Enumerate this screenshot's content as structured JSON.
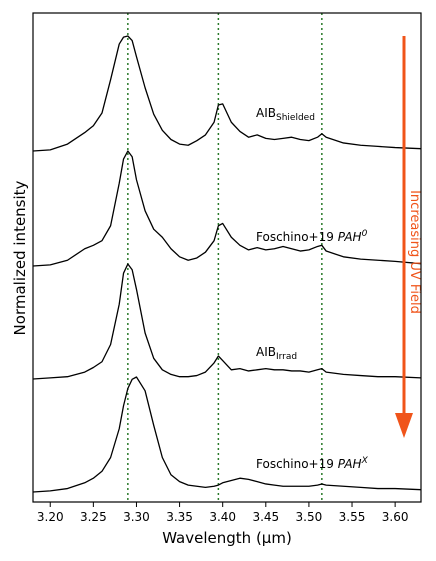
{
  "chart_data": {
    "type": "line",
    "xlabel": "Wavelength (μm)",
    "ylabel": "Normalized intensity",
    "xlim": [
      3.18,
      3.63
    ],
    "x_ticks": [
      "3.20",
      "3.25",
      "3.30",
      "3.35",
      "3.40",
      "3.45",
      "3.50",
      "3.55",
      "3.60"
    ],
    "vertical_lines": [
      3.29,
      3.395,
      3.515
    ],
    "vertical_line_color": "#2a7a2a",
    "line_color": "#000000",
    "arrow": {
      "label": "Increasing UV Field",
      "color": "#f0541a",
      "direction": "down"
    },
    "series": [
      {
        "name": "AIB",
        "name_sub": "Shielded",
        "name_sup": "",
        "name_italic": "",
        "offset": 3,
        "x": [
          3.18,
          3.2,
          3.22,
          3.24,
          3.25,
          3.26,
          3.27,
          3.28,
          3.285,
          3.29,
          3.295,
          3.3,
          3.31,
          3.32,
          3.33,
          3.34,
          3.35,
          3.36,
          3.37,
          3.38,
          3.39,
          3.395,
          3.4,
          3.41,
          3.42,
          3.43,
          3.44,
          3.45,
          3.46,
          3.47,
          3.48,
          3.49,
          3.5,
          3.51,
          3.515,
          3.52,
          3.54,
          3.56,
          3.58,
          3.6,
          3.63
        ],
        "y": [
          0.0,
          0.01,
          0.06,
          0.16,
          0.22,
          0.33,
          0.62,
          0.93,
          0.99,
          1.0,
          0.96,
          0.82,
          0.55,
          0.32,
          0.18,
          0.1,
          0.06,
          0.05,
          0.09,
          0.14,
          0.25,
          0.4,
          0.41,
          0.25,
          0.17,
          0.12,
          0.14,
          0.11,
          0.1,
          0.11,
          0.12,
          0.1,
          0.09,
          0.12,
          0.15,
          0.12,
          0.07,
          0.05,
          0.04,
          0.03,
          0.02
        ]
      },
      {
        "name": "Foschino+19 ",
        "name_sub": "",
        "name_sup": "0",
        "name_italic": "PAH",
        "offset": 2,
        "x": [
          3.18,
          3.2,
          3.22,
          3.24,
          3.25,
          3.26,
          3.27,
          3.28,
          3.285,
          3.29,
          3.295,
          3.3,
          3.31,
          3.32,
          3.33,
          3.34,
          3.35,
          3.36,
          3.37,
          3.38,
          3.39,
          3.395,
          3.4,
          3.41,
          3.42,
          3.43,
          3.44,
          3.45,
          3.46,
          3.47,
          3.48,
          3.49,
          3.5,
          3.51,
          3.515,
          3.52,
          3.54,
          3.56,
          3.58,
          3.6,
          3.63
        ],
        "y": [
          0.0,
          0.01,
          0.05,
          0.15,
          0.18,
          0.22,
          0.35,
          0.72,
          0.93,
          1.0,
          0.95,
          0.75,
          0.48,
          0.32,
          0.25,
          0.15,
          0.08,
          0.05,
          0.07,
          0.12,
          0.22,
          0.35,
          0.37,
          0.25,
          0.18,
          0.14,
          0.16,
          0.14,
          0.15,
          0.17,
          0.15,
          0.13,
          0.14,
          0.17,
          0.18,
          0.13,
          0.08,
          0.06,
          0.05,
          0.04,
          0.02
        ]
      },
      {
        "name": "AIB",
        "name_sub": "Irrad",
        "name_sup": "",
        "name_italic": "",
        "offset": 1,
        "x": [
          3.18,
          3.2,
          3.22,
          3.24,
          3.25,
          3.26,
          3.27,
          3.28,
          3.285,
          3.29,
          3.295,
          3.3,
          3.31,
          3.32,
          3.33,
          3.34,
          3.35,
          3.36,
          3.37,
          3.38,
          3.39,
          3.395,
          3.4,
          3.41,
          3.42,
          3.43,
          3.44,
          3.45,
          3.46,
          3.47,
          3.48,
          3.49,
          3.5,
          3.51,
          3.515,
          3.52,
          3.54,
          3.56,
          3.58,
          3.6,
          3.63
        ],
        "y": [
          0.0,
          0.01,
          0.02,
          0.06,
          0.1,
          0.15,
          0.3,
          0.65,
          0.92,
          1.0,
          0.95,
          0.78,
          0.4,
          0.18,
          0.08,
          0.04,
          0.02,
          0.02,
          0.03,
          0.06,
          0.14,
          0.2,
          0.16,
          0.08,
          0.09,
          0.07,
          0.08,
          0.09,
          0.08,
          0.08,
          0.07,
          0.07,
          0.06,
          0.08,
          0.09,
          0.06,
          0.04,
          0.03,
          0.02,
          0.02,
          0.01
        ]
      },
      {
        "name": "Foschino+19 ",
        "name_sub": "",
        "name_sup": "X",
        "name_italic": "PAH",
        "offset": 0,
        "x": [
          3.18,
          3.2,
          3.22,
          3.24,
          3.25,
          3.26,
          3.27,
          3.28,
          3.285,
          3.29,
          3.295,
          3.3,
          3.31,
          3.32,
          3.33,
          3.34,
          3.35,
          3.36,
          3.37,
          3.38,
          3.39,
          3.395,
          3.4,
          3.41,
          3.42,
          3.43,
          3.44,
          3.45,
          3.46,
          3.47,
          3.48,
          3.49,
          3.5,
          3.51,
          3.515,
          3.52,
          3.54,
          3.56,
          3.58,
          3.6,
          3.63
        ],
        "y": [
          0.0,
          0.01,
          0.03,
          0.08,
          0.12,
          0.18,
          0.3,
          0.55,
          0.75,
          0.9,
          0.98,
          1.0,
          0.88,
          0.58,
          0.3,
          0.15,
          0.09,
          0.06,
          0.05,
          0.04,
          0.05,
          0.06,
          0.08,
          0.1,
          0.12,
          0.11,
          0.09,
          0.07,
          0.06,
          0.05,
          0.05,
          0.05,
          0.05,
          0.06,
          0.07,
          0.06,
          0.05,
          0.04,
          0.03,
          0.03,
          0.02
        ]
      }
    ]
  }
}
